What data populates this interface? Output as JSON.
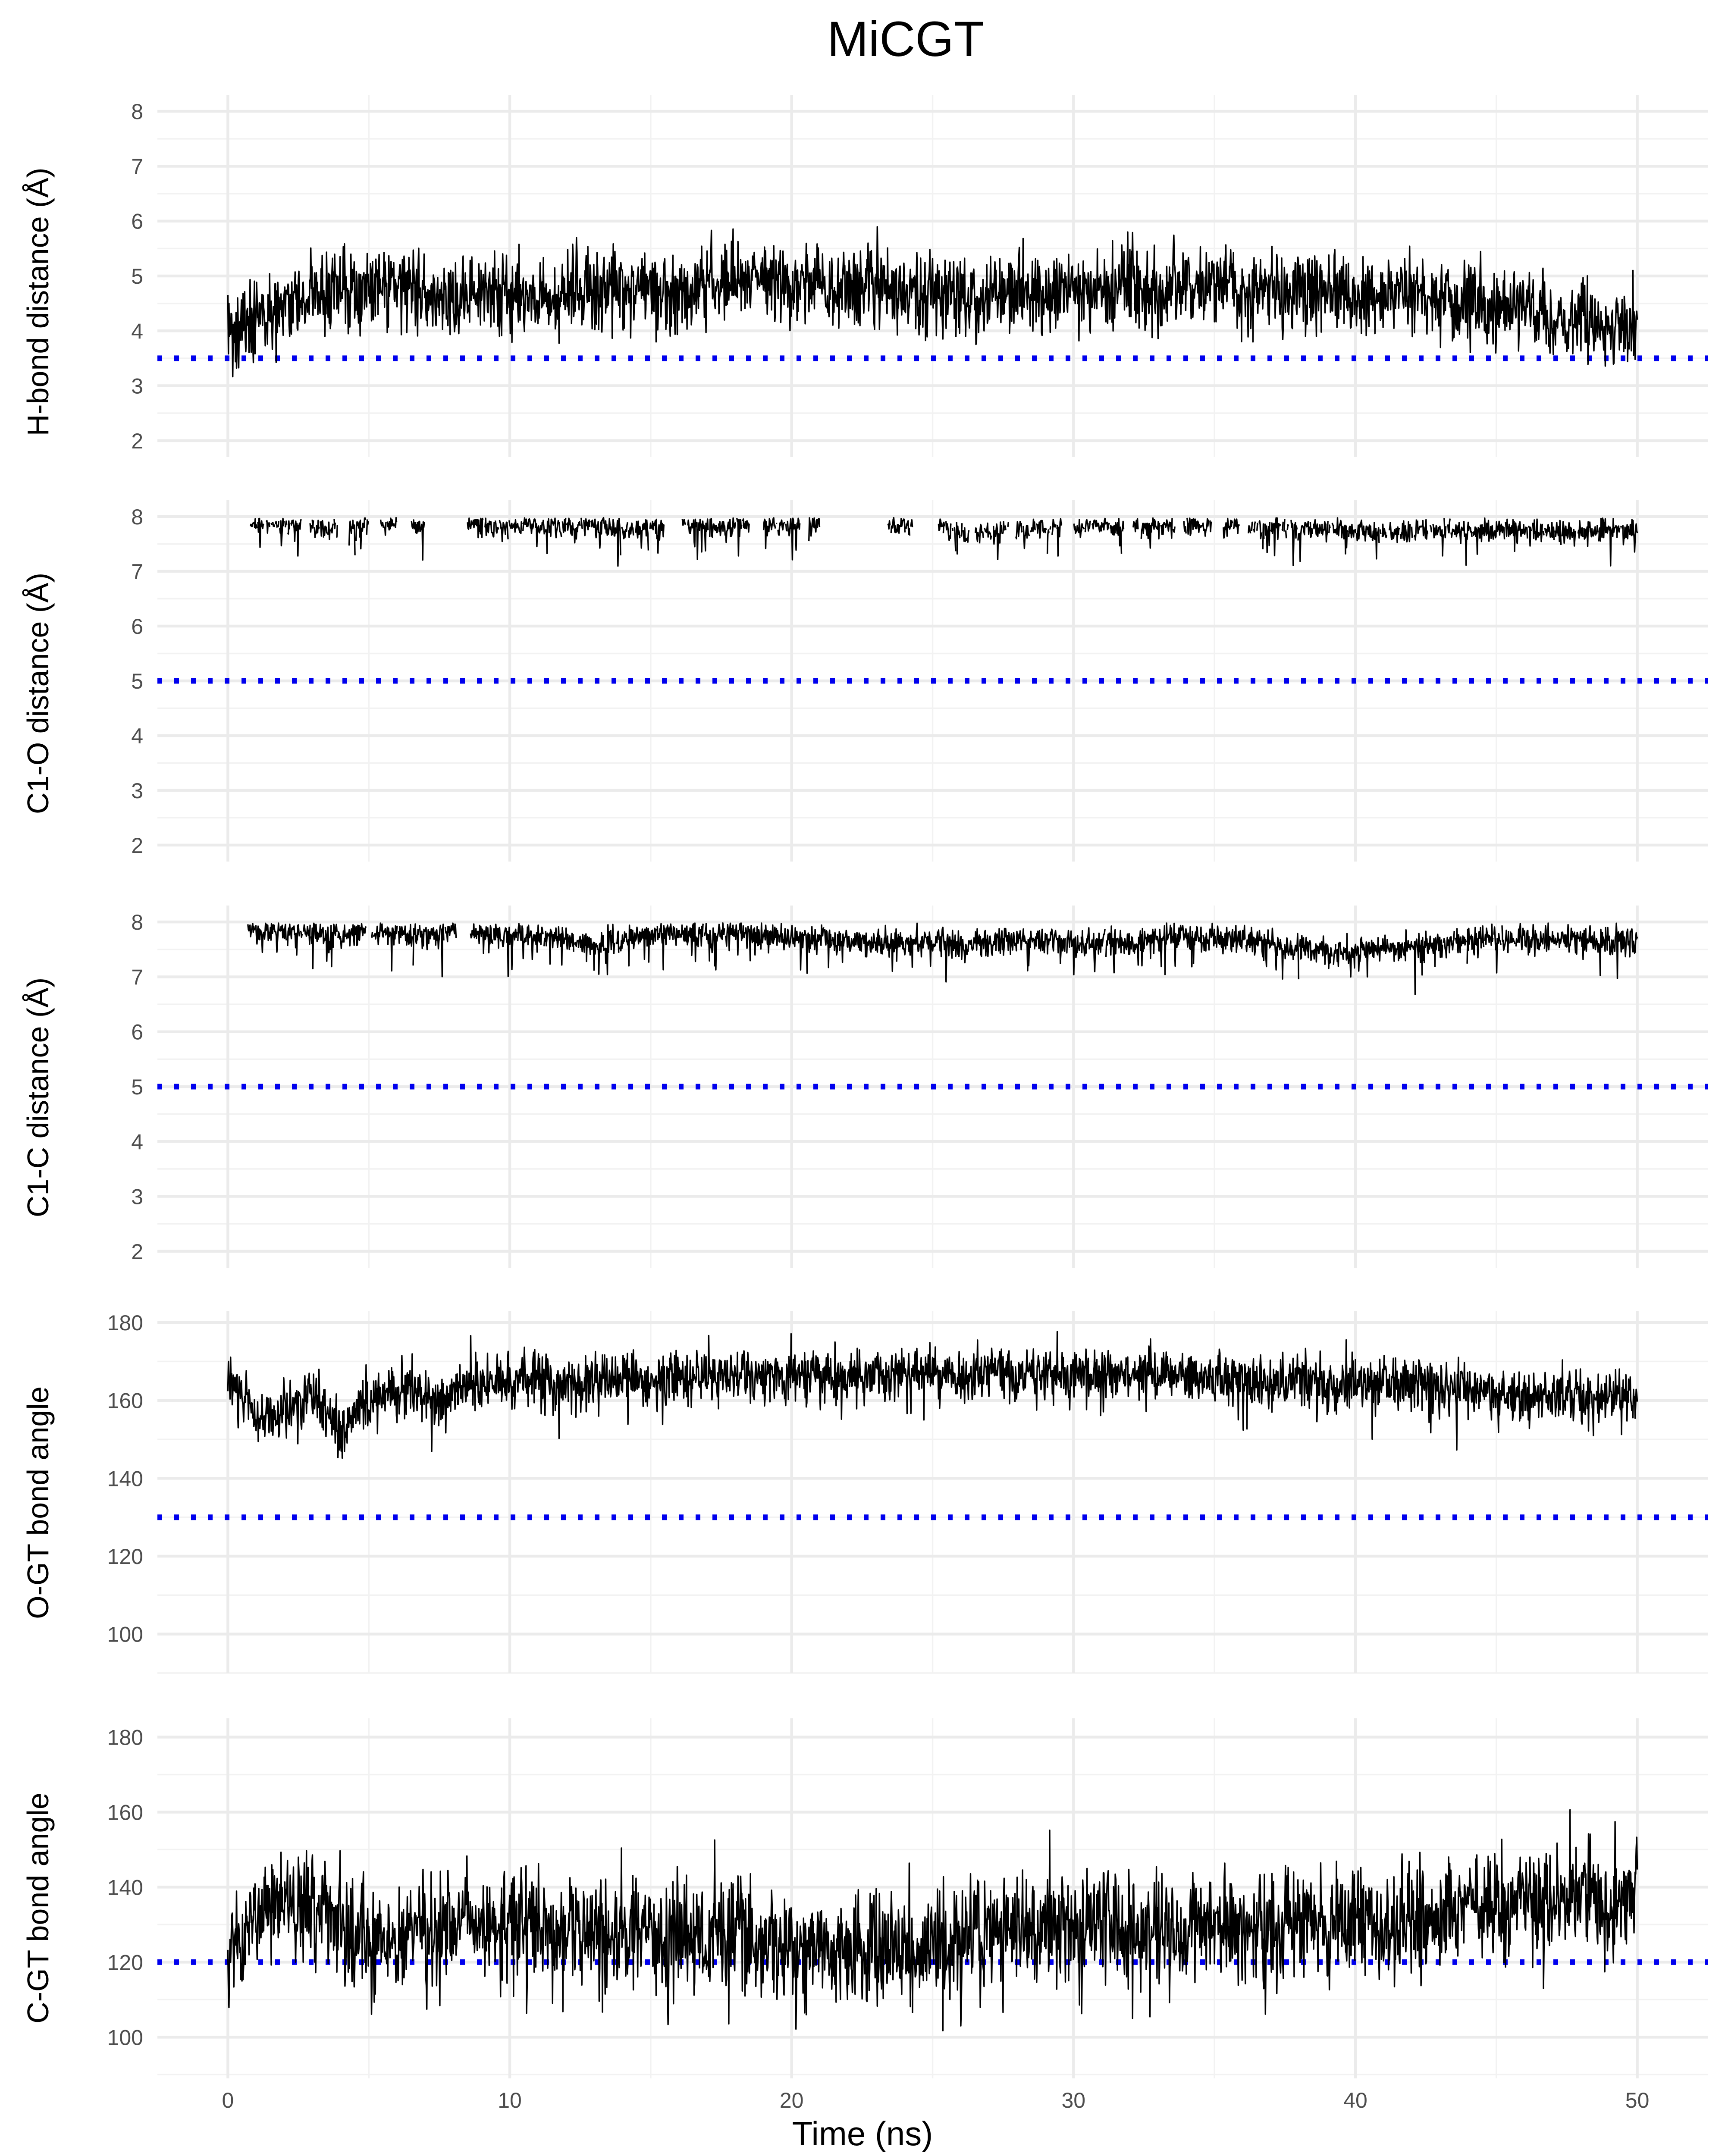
{
  "figure": {
    "title": "MiCGT"
  },
  "colors": {
    "series": "#000000",
    "threshold": "#0000ee"
  },
  "chart_data": [
    {
      "type": "line",
      "title": "MiCGT",
      "xlabel": "",
      "ylabel": "H-bond distance (Å)",
      "xlim": [
        -2.5,
        52.5
      ],
      "ylim": [
        1.7,
        8.3
      ],
      "yticks": [
        2,
        3,
        4,
        5,
        6,
        7,
        8
      ],
      "grid": true,
      "threshold": 3.5,
      "series": [
        {
          "x": [
            0,
            0.5,
            1,
            1.5,
            2,
            2.5,
            3,
            3.5,
            4,
            4.5,
            5,
            5.5,
            6,
            6.5,
            7,
            7.5,
            8,
            9,
            10,
            11,
            12,
            13,
            14,
            15,
            16,
            17,
            18,
            19,
            20,
            21,
            22,
            23,
            24,
            25,
            26,
            27,
            28,
            29,
            30,
            31,
            32,
            33,
            34,
            35,
            36,
            37,
            38,
            39,
            40,
            41,
            42,
            43,
            44,
            45,
            46,
            47,
            48,
            49,
            50
          ],
          "values": [
            4.1,
            4.0,
            4.4,
            4.2,
            4.5,
            4.4,
            4.7,
            4.6,
            4.8,
            4.7,
            4.8,
            4.9,
            4.8,
            4.9,
            4.7,
            4.5,
            4.7,
            4.7,
            4.7,
            4.6,
            4.7,
            4.7,
            4.8,
            4.7,
            4.7,
            4.8,
            5.0,
            5.0,
            4.9,
            4.8,
            4.8,
            4.9,
            4.8,
            4.7,
            4.6,
            4.7,
            4.7,
            4.7,
            4.7,
            4.8,
            4.8,
            4.7,
            4.8,
            4.8,
            4.7,
            4.7,
            4.8,
            4.8,
            4.6,
            4.7,
            4.8,
            4.6,
            4.5,
            4.4,
            4.4,
            4.3,
            4.2,
            4.1,
            4.1
          ]
        }
      ]
    },
    {
      "type": "line",
      "title": "",
      "xlabel": "",
      "ylabel": "C1-O distance (Å)",
      "xlim": [
        -2.5,
        52.5
      ],
      "ylim": [
        1.7,
        8.3
      ],
      "yticks": [
        2,
        3,
        4,
        5,
        6,
        7,
        8
      ],
      "grid": true,
      "threshold": 5,
      "series": [
        {
          "x": [
            0.8,
            1.5,
            2.5,
            3.5,
            4.5,
            5.5,
            6.5,
            7.5,
            8.5,
            9.5,
            10.5,
            11.5,
            12.5,
            13.5,
            14.5,
            15.5,
            16.5,
            17.5,
            18.5,
            19.5,
            20.5,
            21.5,
            22.5,
            23.5,
            24.5,
            25.5,
            26.5,
            27.5,
            28.5,
            29.5,
            30.5,
            31.5,
            32.5,
            33.5,
            34.5,
            35.5,
            36.5,
            37.5,
            38.5,
            39.5,
            40.5,
            41.5,
            42.5,
            43.5,
            44.5,
            45.5,
            46.5,
            47.5,
            48.5,
            49.5,
            50
          ],
          "values": [
            7.85,
            7.9,
            7.85,
            7.8,
            7.85,
            7.9,
            7.85,
            7.85,
            7.9,
            7.8,
            7.85,
            7.8,
            7.85,
            7.8,
            7.75,
            7.85,
            7.85,
            7.85,
            7.9,
            7.85,
            7.9,
            7.85,
            7.9,
            7.85,
            7.85,
            7.75,
            7.7,
            7.75,
            7.8,
            7.8,
            7.85,
            7.8,
            7.8,
            7.85,
            7.85,
            7.8,
            7.85,
            7.8,
            7.75,
            7.8,
            7.75,
            7.7,
            7.75,
            7.75,
            7.75,
            7.8,
            7.75,
            7.7,
            7.75,
            7.75,
            7.7
          ]
        }
      ]
    },
    {
      "type": "line",
      "title": "",
      "xlabel": "",
      "ylabel": "C1-C distance (Å)",
      "xlim": [
        -2.5,
        52.5
      ],
      "ylim": [
        1.7,
        8.3
      ],
      "yticks": [
        2,
        3,
        4,
        5,
        6,
        7,
        8
      ],
      "grid": true,
      "threshold": 5,
      "series": [
        {
          "x": [
            0.5,
            1,
            2,
            3,
            4,
            5,
            6,
            7,
            8,
            9,
            10,
            11,
            12,
            13,
            14,
            15,
            16,
            17,
            18,
            19,
            20,
            21,
            22,
            23,
            24,
            25,
            26,
            27,
            28,
            29,
            30,
            31,
            32,
            33,
            34,
            35,
            36,
            37,
            38,
            39,
            40,
            41,
            42,
            43,
            44,
            45,
            46,
            47,
            48,
            49,
            50
          ],
          "values": [
            7.95,
            7.85,
            7.8,
            7.8,
            7.75,
            7.85,
            7.8,
            7.75,
            7.85,
            7.8,
            7.75,
            7.75,
            7.7,
            7.6,
            7.65,
            7.75,
            7.8,
            7.75,
            7.8,
            7.75,
            7.7,
            7.7,
            7.65,
            7.65,
            7.6,
            7.65,
            7.55,
            7.65,
            7.65,
            7.7,
            7.6,
            7.6,
            7.65,
            7.7,
            7.7,
            7.7,
            7.7,
            7.6,
            7.5,
            7.45,
            7.45,
            7.5,
            7.5,
            7.6,
            7.65,
            7.7,
            7.65,
            7.65,
            7.65,
            7.65,
            7.65
          ]
        }
      ]
    },
    {
      "type": "line",
      "title": "",
      "xlabel": "",
      "ylabel": "O-GT bond angle",
      "xlim": [
        -2.5,
        52.5
      ],
      "ylim": [
        90,
        183
      ],
      "yticks": [
        100,
        120,
        140,
        160,
        180
      ],
      "grid": true,
      "threshold": 130,
      "series": [
        {
          "x": [
            0,
            0.5,
            1,
            1.5,
            2,
            2.5,
            3,
            3.5,
            4,
            4.5,
            5,
            5.5,
            6,
            6.5,
            7,
            7.5,
            8,
            9,
            10,
            11,
            12,
            13,
            14,
            15,
            16,
            17,
            18,
            19,
            20,
            21,
            22,
            23,
            24,
            25,
            26,
            27,
            28,
            29,
            30,
            31,
            32,
            33,
            34,
            35,
            36,
            37,
            38,
            39,
            40,
            41,
            42,
            43,
            44,
            45,
            46,
            47,
            48,
            49,
            50
          ],
          "values": [
            167,
            162,
            157,
            155,
            158,
            160,
            161,
            157,
            151,
            157,
            161,
            162,
            163,
            163,
            160,
            159,
            163,
            164,
            165,
            165,
            164,
            165,
            166,
            166,
            166,
            166,
            167,
            167,
            166,
            167,
            166,
            167,
            167,
            167,
            166,
            167,
            166,
            167,
            167,
            167,
            167,
            167,
            167,
            166,
            165,
            165,
            165,
            164,
            164,
            164,
            164,
            164,
            164,
            162,
            161,
            162,
            160,
            161,
            161
          ]
        }
      ]
    },
    {
      "type": "line",
      "title": "",
      "xlabel": "Time (ns)",
      "ylabel": "C-GT bond angle",
      "xlim": [
        -2.5,
        52.5
      ],
      "xticks": [
        0,
        10,
        20,
        30,
        40,
        50
      ],
      "ylim": [
        89,
        185
      ],
      "yticks": [
        100,
        120,
        140,
        160,
        180
      ],
      "grid": true,
      "threshold": 120,
      "series": [
        {
          "x": [
            0,
            0.5,
            1,
            1.5,
            2,
            2.5,
            3,
            3.5,
            4,
            4.5,
            5,
            5.5,
            6,
            6.5,
            7,
            7.5,
            8,
            9,
            10,
            11,
            12,
            13,
            14,
            15,
            16,
            17,
            18,
            19,
            20,
            21,
            22,
            23,
            24,
            25,
            26,
            27,
            28,
            29,
            30,
            31,
            32,
            33,
            34,
            35,
            36,
            37,
            38,
            39,
            40,
            41,
            42,
            43,
            44,
            45,
            46,
            47,
            48,
            49,
            50
          ],
          "values": [
            123,
            126,
            133,
            135,
            136,
            133,
            131,
            137,
            130,
            128,
            126,
            125,
            126,
            127,
            129,
            126,
            127,
            130,
            131,
            130,
            129,
            128,
            128,
            128,
            127,
            126,
            128,
            126,
            124,
            123,
            124,
            123,
            124,
            125,
            127,
            128,
            128,
            129,
            130,
            131,
            129,
            129,
            129,
            130,
            130,
            130,
            131,
            130,
            131,
            131,
            132,
            133,
            134,
            135,
            135,
            138,
            137,
            137,
            138
          ]
        }
      ]
    }
  ]
}
